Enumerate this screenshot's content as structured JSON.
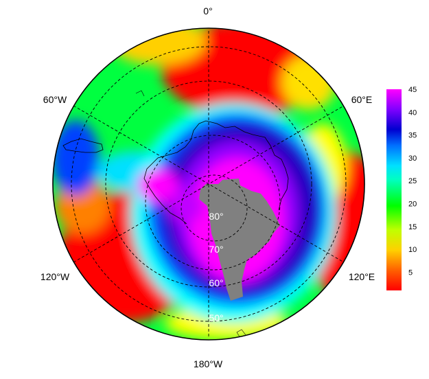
{
  "map": {
    "longitude_labels": {
      "top": "0°",
      "upper_left": "60°W",
      "upper_right": "60°E",
      "lower_left": "120°W",
      "lower_right": "120°E",
      "bottom": "180°W"
    },
    "latitude_labels": [
      "80°",
      "70°",
      "60°",
      "50°"
    ],
    "land_color": "#808080"
  },
  "colorbar": {
    "ticks": [
      "45",
      "40",
      "35",
      "30",
      "25",
      "20",
      "15",
      "10",
      "5"
    ],
    "min": 1,
    "max": 45,
    "colors": [
      "#ff0000",
      "#ffd000",
      "#ffff00",
      "#00ff00",
      "#00ffff",
      "#0080ff",
      "#0000c0",
      "#8000ff",
      "#ff00ff"
    ]
  }
}
